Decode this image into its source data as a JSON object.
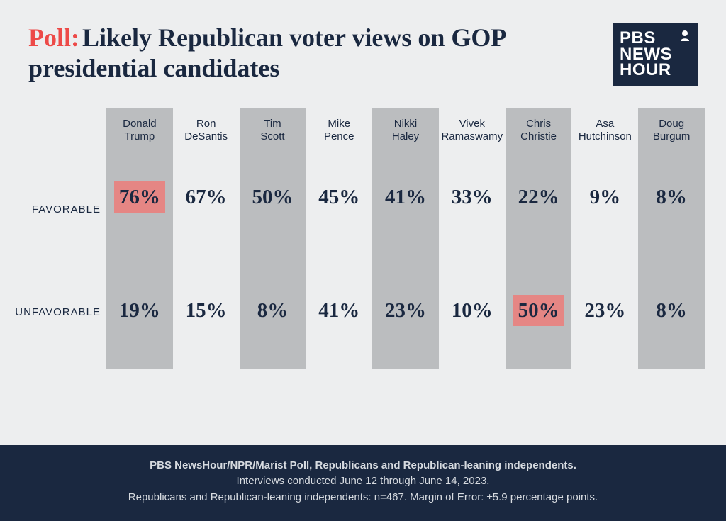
{
  "colors": {
    "background": "#edeeef",
    "text_dark": "#1a2840",
    "poll_red": "#ed4a48",
    "stripe_gray": "#bbbdbf",
    "highlight": "#e58684",
    "footer_bg": "#1a2840",
    "footer_text": "#d7dbe0",
    "logo_bg": "#1a2840",
    "logo_text": "#ffffff"
  },
  "header": {
    "poll_label": "Poll:",
    "title": "Likely Republican voter views on GOP presidential candidates",
    "logo_lines": [
      "PBS",
      "NEWS",
      "HOUR"
    ]
  },
  "table": {
    "row_labels": {
      "favorable": "FAVORABLE",
      "unfavorable": "UNFAVORABLE"
    },
    "candidates": [
      {
        "first": "Donald",
        "last": "Trump",
        "favorable": "76%",
        "unfavorable": "19%",
        "highlight": "favorable"
      },
      {
        "first": "Ron",
        "last": "DeSantis",
        "favorable": "67%",
        "unfavorable": "15%",
        "highlight": null
      },
      {
        "first": "Tim",
        "last": "Scott",
        "favorable": "50%",
        "unfavorable": "8%",
        "highlight": null
      },
      {
        "first": "Mike",
        "last": "Pence",
        "favorable": "45%",
        "unfavorable": "41%",
        "highlight": null
      },
      {
        "first": "Nikki",
        "last": "Haley",
        "favorable": "41%",
        "unfavorable": "23%",
        "highlight": null
      },
      {
        "first": "Vivek",
        "last": "Ramaswamy",
        "favorable": "33%",
        "unfavorable": "10%",
        "highlight": null
      },
      {
        "first": "Chris",
        "last": "Christie",
        "favorable": "22%",
        "unfavorable": "50%",
        "highlight": "unfavorable"
      },
      {
        "first": "Asa",
        "last": "Hutchinson",
        "favorable": "9%",
        "unfavorable": "23%",
        "highlight": null
      },
      {
        "first": "Doug",
        "last": "Burgum",
        "favorable": "8%",
        "unfavorable": "8%",
        "highlight": null
      }
    ]
  },
  "footer": {
    "line1": "PBS NewsHour/NPR/Marist Poll, Republicans and Republican-leaning independents.",
    "line2": "Interviews conducted June 12 through June 14, 2023.",
    "line3": "Republicans and Republican-leaning independents: n=467. Margin of Error: ±5.9 percentage points."
  }
}
